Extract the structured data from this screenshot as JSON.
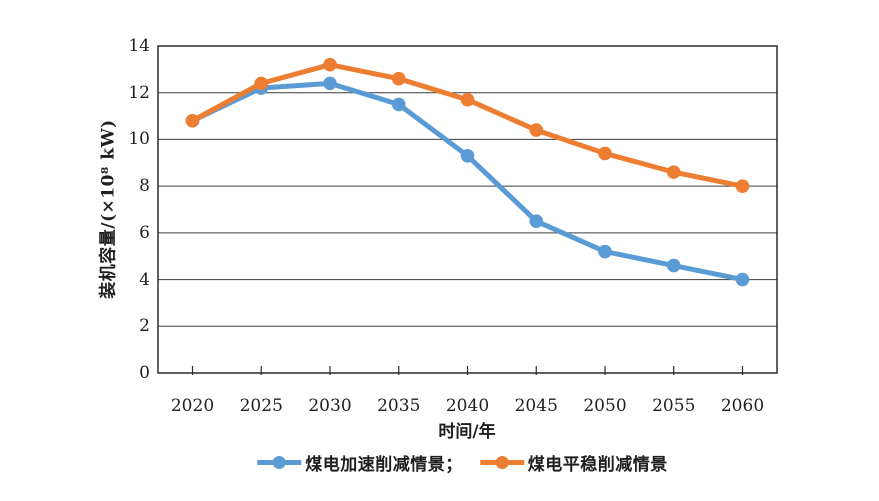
{
  "chart_data": {
    "type": "line",
    "x": [
      2020,
      2025,
      2030,
      2035,
      2040,
      2045,
      2050,
      2055,
      2060
    ],
    "series": [
      {
        "name": "煤电加速削减情景",
        "legend_label": "煤电加速削减情景；",
        "color": "#5B9BD5",
        "values": [
          10.8,
          12.2,
          12.4,
          11.5,
          9.3,
          6.5,
          5.2,
          4.6,
          4.0
        ]
      },
      {
        "name": "煤电平稳削减情景",
        "legend_label": "煤电平稳削减情景",
        "color": "#ED7D31",
        "values": [
          10.8,
          12.4,
          13.2,
          12.6,
          11.7,
          10.4,
          9.4,
          8.6,
          8.0
        ]
      }
    ],
    "xlabel": "时间/年",
    "ylabel": "装机容量/(×10⁸ kW)",
    "ylim": [
      0,
      14
    ],
    "yticks": [
      0,
      2,
      4,
      6,
      8,
      10,
      12,
      14
    ],
    "grid": "horizontal",
    "legend_position": "bottom",
    "marker": "circle",
    "axis_color": "#2b2b2b",
    "grid_color": "#3c3c3c"
  }
}
